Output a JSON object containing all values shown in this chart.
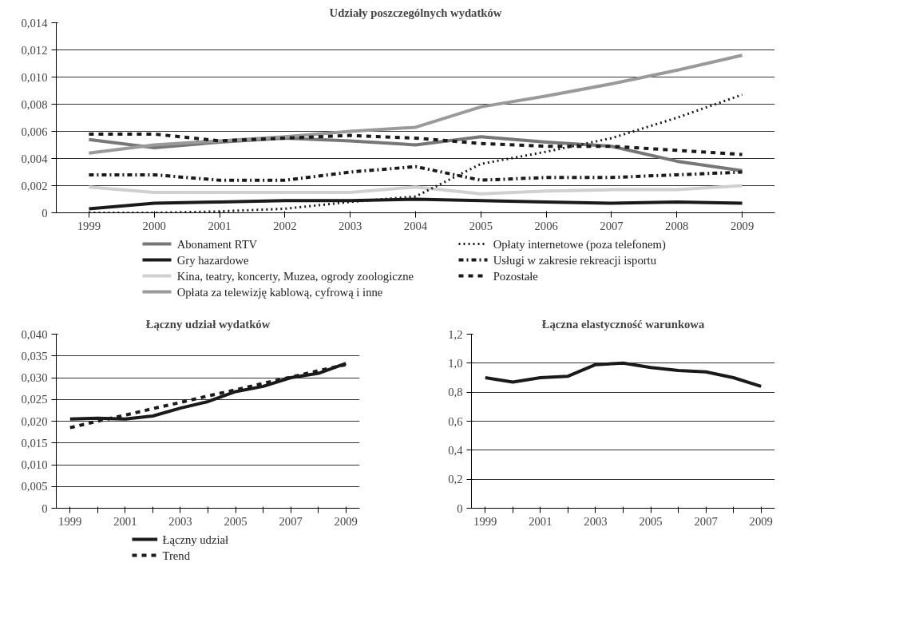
{
  "chart_data": [
    {
      "type": "line",
      "title": "Udziały poszczególnych wydatków",
      "categories": [
        "1999",
        "2000",
        "2001",
        "2002",
        "2003",
        "2004",
        "2005",
        "2006",
        "2007",
        "2008",
        "2009"
      ],
      "ylim": [
        0,
        0.014
      ],
      "yticks": [
        0,
        {
          "value": 0.002,
          "label": "0,002"
        },
        {
          "value": 0.004,
          "label": "0,004"
        },
        {
          "value": 0.006,
          "label": "0,006"
        },
        {
          "value": 0.008,
          "label": "0,008"
        },
        {
          "value": 0.01,
          "label": "0,010"
        },
        {
          "value": 0.012,
          "label": "0,012"
        },
        {
          "value": 0.014,
          "label": "0,014"
        }
      ],
      "grid": "y",
      "legend": "bottom",
      "series": [
        {
          "name": "Abonament RTV",
          "color": "#777777",
          "line_style": "solid",
          "values": [
            0.0054,
            0.0048,
            0.0052,
            0.0055,
            0.0053,
            0.005,
            0.0056,
            0.0052,
            0.0049,
            0.0038,
            0.0031
          ]
        },
        {
          "name": "Gry hazardowe",
          "color": "#1a1a1a",
          "line_style": "solid",
          "values": [
            0.0003,
            0.0007,
            0.0008,
            0.0009,
            0.0009,
            0.001,
            0.0009,
            0.0008,
            0.0007,
            0.0008,
            0.0007
          ]
        },
        {
          "name": "Kina, teatry, koncerty, Muzea, ogrody zoologiczne",
          "color": "#d0d0d0",
          "line_style": "solid",
          "values": [
            0.0019,
            0.0015,
            0.0015,
            0.0015,
            0.0015,
            0.0019,
            0.0014,
            0.0016,
            0.0017,
            0.0017,
            0.002
          ]
        },
        {
          "name": "Opłata za telewizję kablową, cyfrową i inne",
          "color": "#9a9a9a",
          "line_style": "solid",
          "values": [
            0.0044,
            0.005,
            0.0053,
            0.0056,
            0.006,
            0.0063,
            0.0078,
            0.0086,
            0.0095,
            0.0105,
            0.0116
          ]
        },
        {
          "name": "Opłaty internetowe (poza telefonem)",
          "color": "#1a1a1a",
          "line_style": "dotted",
          "values": [
            0.0,
            0.0,
            0.0001,
            0.0003,
            0.0008,
            0.0012,
            0.0036,
            0.0045,
            0.0055,
            0.007,
            0.0087
          ]
        },
        {
          "name": "Usługi w zakresie rekreacji isportu",
          "color": "#1a1a1a",
          "line_style": "dashdot",
          "values": [
            0.0028,
            0.0028,
            0.0024,
            0.0024,
            0.003,
            0.0034,
            0.0024,
            0.0026,
            0.0026,
            0.0028,
            0.003
          ]
        },
        {
          "name": "Pozostałe",
          "color": "#1a1a1a",
          "line_style": "dashed",
          "values": [
            0.0058,
            0.0058,
            0.0053,
            0.0055,
            0.0057,
            0.0055,
            0.0051,
            0.0049,
            0.0049,
            0.0046,
            0.0043
          ]
        }
      ]
    },
    {
      "type": "line",
      "title": "Łączny udział wydatków",
      "categories": [
        "1999",
        null,
        "2001",
        null,
        "2003",
        null,
        "2005",
        null,
        "2007",
        null,
        "2009"
      ],
      "ylim": [
        0,
        0.04
      ],
      "yticks": [
        0,
        {
          "value": 0.005,
          "label": "0,005"
        },
        {
          "value": 0.01,
          "label": "0,010"
        },
        {
          "value": 0.015,
          "label": "0,015"
        },
        {
          "value": 0.02,
          "label": "0,020"
        },
        {
          "value": 0.025,
          "label": "0,025"
        },
        {
          "value": 0.03,
          "label": "0,030"
        },
        {
          "value": 0.035,
          "label": "0,035"
        },
        {
          "value": 0.04,
          "label": "0,040"
        }
      ],
      "grid": "y",
      "legend": "bottom",
      "series": [
        {
          "name": "Łączny udział",
          "color": "#1a1a1a",
          "line_style": "solid",
          "values": [
            0.0205,
            0.0207,
            0.0205,
            0.0212,
            0.023,
            0.0245,
            0.0268,
            0.028,
            0.03,
            0.031,
            0.0333
          ]
        },
        {
          "name": "Trend",
          "color": "#1a1a1a",
          "line_style": "dashed",
          "values": [
            0.0185,
            0.02,
            0.0214,
            0.0229,
            0.0243,
            0.0258,
            0.0272,
            0.0287,
            0.0301,
            0.0316,
            0.033
          ]
        }
      ]
    },
    {
      "type": "line",
      "title": "Łączna elastyczność warunkowa",
      "categories": [
        "1999",
        null,
        "2001",
        null,
        "2003",
        null,
        "2005",
        null,
        "2007",
        null,
        "2009"
      ],
      "ylim": [
        0,
        1.2
      ],
      "yticks": [
        0,
        {
          "value": 0.2,
          "label": "0,2"
        },
        {
          "value": 0.4,
          "label": "0,4"
        },
        {
          "value": 0.6,
          "label": "0,6"
        },
        {
          "value": 0.8,
          "label": "0,8"
        },
        {
          "value": 1.0,
          "label": "1,0"
        },
        {
          "value": 1.2,
          "label": "1,2"
        }
      ],
      "grid": "y",
      "series": [
        {
          "color": "#1a1a1a",
          "line_style": "solid",
          "values": [
            0.9,
            0.87,
            0.9,
            0.91,
            0.99,
            1.0,
            0.97,
            0.95,
            0.94,
            0.9,
            0.84
          ]
        }
      ]
    }
  ]
}
